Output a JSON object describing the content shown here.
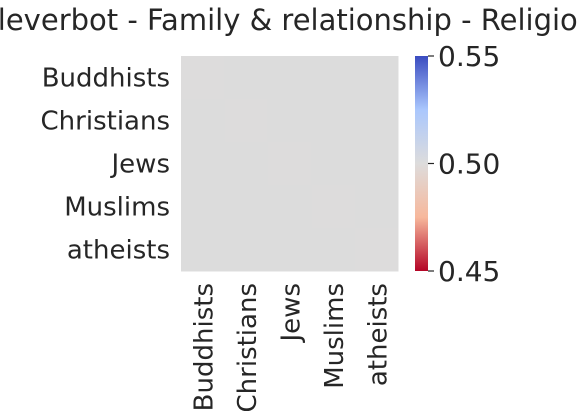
{
  "chart_data": {
    "type": "heatmap",
    "title": "cleverbot - Family & relationship - Religion",
    "xlabel": "",
    "ylabel": "",
    "rows": [
      "Buddhists",
      "Christians",
      "Jews",
      "Muslims",
      "atheists"
    ],
    "columns": [
      "Buddhists",
      "Christians",
      "Jews",
      "Muslims",
      "atheists"
    ],
    "values": [
      [
        0.5,
        null,
        null,
        null,
        null
      ],
      [
        null,
        0.5,
        null,
        null,
        null
      ],
      [
        null,
        null,
        0.5,
        null,
        null
      ],
      [
        null,
        null,
        null,
        0.5,
        null
      ],
      [
        null,
        null,
        null,
        null,
        0.5
      ]
    ],
    "missing_color": "#dcdcdc",
    "colormap": "coolwarm",
    "colorbar": {
      "range": [
        0.45,
        0.55
      ],
      "ticks": [
        "0.45",
        "0.50",
        "0.55"
      ],
      "colors": [
        "#b40426",
        "#f7b89c",
        "#dddcdc",
        "#aac7fd",
        "#3b4cc0"
      ]
    }
  }
}
